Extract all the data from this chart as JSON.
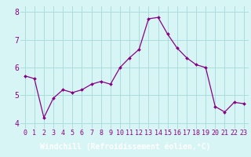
{
  "xlabel": "Windchill (Refroidissement éolien,°C)",
  "x_values": [
    0,
    1,
    2,
    3,
    4,
    5,
    6,
    7,
    8,
    9,
    10,
    11,
    12,
    13,
    14,
    15,
    16,
    17,
    18,
    19,
    20,
    21,
    22,
    23
  ],
  "y_values": [
    5.7,
    5.6,
    4.2,
    4.9,
    5.2,
    5.1,
    5.2,
    5.4,
    5.5,
    5.4,
    6.0,
    6.35,
    6.65,
    7.75,
    7.8,
    7.2,
    6.7,
    6.35,
    6.1,
    6.0,
    4.6,
    4.4,
    4.75,
    4.7
  ],
  "line_color": "#880088",
  "marker_color": "#880088",
  "bg_color": "#d8f5f5",
  "grid_color": "#aadddd",
  "axis_label_bg": "#6600aa",
  "axis_label_color": "#ffffff",
  "ylim": [
    3.8,
    8.2
  ],
  "xlim": [
    -0.5,
    23.5
  ],
  "yticks": [
    4,
    5,
    6,
    7,
    8
  ],
  "xticks": [
    0,
    1,
    2,
    3,
    4,
    5,
    6,
    7,
    8,
    9,
    10,
    11,
    12,
    13,
    14,
    15,
    16,
    17,
    18,
    19,
    20,
    21,
    22,
    23
  ],
  "tick_fontsize": 6,
  "xlabel_fontsize": 7
}
